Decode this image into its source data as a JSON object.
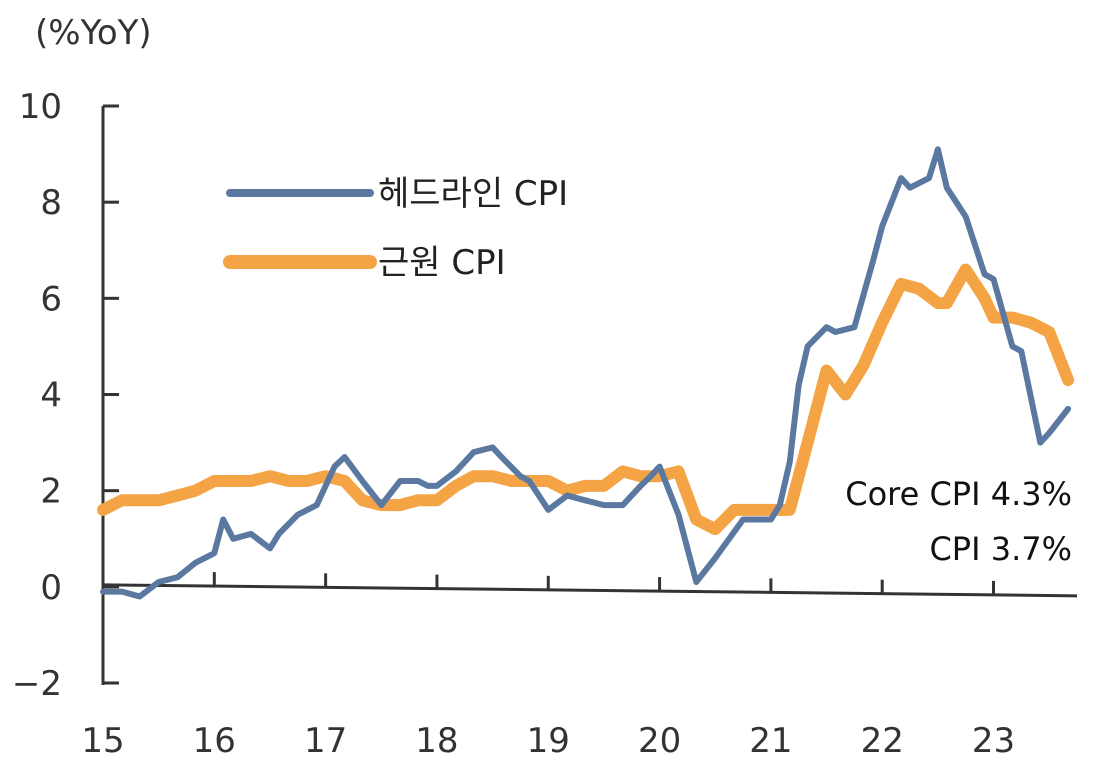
{
  "chart_data": {
    "type": "line",
    "title": "",
    "unit_label": "(%YoY)",
    "xlabel": "",
    "ylabel": "",
    "ylim": [
      -2,
      10
    ],
    "y_ticks": [
      -2,
      0,
      2,
      4,
      6,
      8,
      10
    ],
    "xlim": [
      2015,
      2023.75
    ],
    "x_ticks": [
      2015,
      2016,
      2017,
      2018,
      2019,
      2020,
      2021,
      2022,
      2023
    ],
    "x_tick_labels": [
      "15",
      "16",
      "17",
      "18",
      "19",
      "20",
      "21",
      "22",
      "23"
    ],
    "legend_placement": "top-left",
    "grid": false,
    "series": [
      {
        "name": "헤드라인 CPI",
        "color": "#5b79a0",
        "x": [
          2015.0,
          2015.17,
          2015.33,
          2015.5,
          2015.67,
          2015.83,
          2016.0,
          2016.08,
          2016.17,
          2016.33,
          2016.5,
          2016.58,
          2016.75,
          2016.92,
          2017.08,
          2017.17,
          2017.33,
          2017.5,
          2017.67,
          2017.83,
          2017.92,
          2018.0,
          2018.17,
          2018.33,
          2018.5,
          2018.58,
          2018.75,
          2018.83,
          2019.0,
          2019.17,
          2019.33,
          2019.5,
          2019.67,
          2019.83,
          2019.92,
          2020.0,
          2020.17,
          2020.33,
          2020.5,
          2020.75,
          2020.92,
          2021.0,
          2021.08,
          2021.17,
          2021.25,
          2021.33,
          2021.5,
          2021.58,
          2021.75,
          2021.92,
          2022.0,
          2022.17,
          2022.25,
          2022.42,
          2022.5,
          2022.58,
          2022.75,
          2022.92,
          2023.0,
          2023.17,
          2023.25,
          2023.42,
          2023.5,
          2023.67
        ],
        "values": [
          -0.1,
          -0.1,
          -0.2,
          0.1,
          0.2,
          0.5,
          0.7,
          1.4,
          1.0,
          1.1,
          0.8,
          1.1,
          1.5,
          1.7,
          2.5,
          2.7,
          2.2,
          1.7,
          2.2,
          2.2,
          2.1,
          2.1,
          2.4,
          2.8,
          2.9,
          2.7,
          2.3,
          2.2,
          1.6,
          1.9,
          1.8,
          1.7,
          1.7,
          2.1,
          2.3,
          2.5,
          1.5,
          0.1,
          0.6,
          1.4,
          1.4,
          1.4,
          1.7,
          2.6,
          4.2,
          5.0,
          5.4,
          5.3,
          5.4,
          6.8,
          7.5,
          8.5,
          8.3,
          8.5,
          9.1,
          8.3,
          7.7,
          6.5,
          6.4,
          5.0,
          4.9,
          3.0,
          3.2,
          3.7
        ]
      },
      {
        "name": "근원 CPI",
        "color": "#f5a445",
        "x": [
          2015.0,
          2015.17,
          2015.33,
          2015.5,
          2015.67,
          2015.83,
          2016.0,
          2016.17,
          2016.33,
          2016.5,
          2016.67,
          2016.83,
          2017.0,
          2017.17,
          2017.33,
          2017.5,
          2017.67,
          2017.83,
          2018.0,
          2018.17,
          2018.33,
          2018.5,
          2018.67,
          2018.83,
          2019.0,
          2019.17,
          2019.33,
          2019.5,
          2019.67,
          2019.83,
          2020.0,
          2020.17,
          2020.33,
          2020.5,
          2020.67,
          2020.83,
          2021.0,
          2021.17,
          2021.33,
          2021.5,
          2021.67,
          2021.83,
          2022.0,
          2022.17,
          2022.33,
          2022.5,
          2022.58,
          2022.75,
          2022.92,
          2023.0,
          2023.17,
          2023.33,
          2023.5,
          2023.67
        ],
        "values": [
          1.6,
          1.8,
          1.8,
          1.8,
          1.9,
          2.0,
          2.2,
          2.2,
          2.2,
          2.3,
          2.2,
          2.2,
          2.3,
          2.2,
          1.8,
          1.7,
          1.7,
          1.8,
          1.8,
          2.1,
          2.3,
          2.3,
          2.2,
          2.2,
          2.2,
          2.0,
          2.1,
          2.1,
          2.4,
          2.3,
          2.3,
          2.4,
          1.4,
          1.2,
          1.6,
          1.6,
          1.6,
          1.6,
          3.0,
          4.5,
          4.0,
          4.6,
          5.5,
          6.3,
          6.2,
          5.9,
          5.9,
          6.6,
          6.0,
          5.6,
          5.6,
          5.5,
          5.3,
          4.3
        ]
      }
    ],
    "annotations": [
      "Core CPI 4.3%",
      "CPI 3.7%"
    ]
  }
}
